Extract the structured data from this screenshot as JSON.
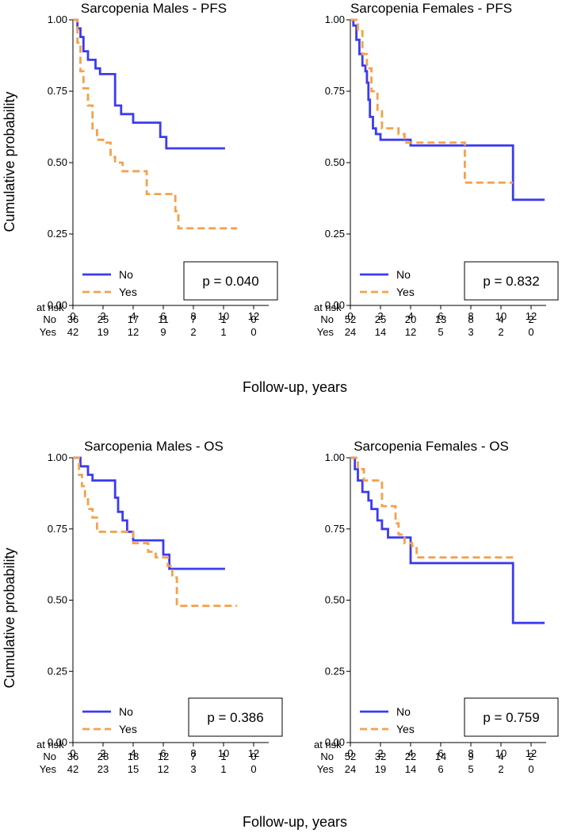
{
  "figure": {
    "ylabel": "Cumulative probability",
    "xlabel": "Follow-up, years",
    "colors": {
      "No": "#3b3bf0",
      "Yes": "#f6a04a"
    }
  },
  "chart_data": [
    {
      "type": "line",
      "title": "Sarcopenia Males - PFS",
      "xlabel": "Follow-up, years",
      "ylabel": "Cumulative probability",
      "xlim": [
        0,
        14
      ],
      "ylim": [
        0,
        1
      ],
      "xticks": [
        0,
        2,
        4,
        6,
        8,
        10,
        12
      ],
      "yticks": [
        "0.00",
        "0.25",
        "0.50",
        "0.75",
        "1.00"
      ],
      "legend": [
        "No",
        "Yes"
      ],
      "p_value": "p = 0.040",
      "risk_title": "at risk",
      "risk_table": [
        {
          "name": "No",
          "values": [
            "36",
            "25",
            "17",
            "11",
            "7",
            "1",
            "0"
          ]
        },
        {
          "name": "Yes",
          "values": [
            "42",
            "19",
            "12",
            "9",
            "2",
            "1",
            "0"
          ]
        }
      ],
      "series": [
        {
          "name": "No",
          "style": "solid",
          "points": [
            [
              0,
              1
            ],
            [
              0.3,
              0.97
            ],
            [
              0.5,
              0.94
            ],
            [
              0.7,
              0.89
            ],
            [
              1,
              0.86
            ],
            [
              1.5,
              0.83
            ],
            [
              1.8,
              0.81
            ],
            [
              2.6,
              0.81
            ],
            [
              2.8,
              0.7
            ],
            [
              3.2,
              0.67
            ],
            [
              4,
              0.64
            ],
            [
              5.6,
              0.64
            ],
            [
              5.8,
              0.59
            ],
            [
              6.2,
              0.55
            ],
            [
              10.1,
              0.55
            ]
          ]
        },
        {
          "name": "Yes",
          "style": "dashed",
          "points": [
            [
              0,
              1
            ],
            [
              0.3,
              0.92
            ],
            [
              0.5,
              0.82
            ],
            [
              0.7,
              0.76
            ],
            [
              1,
              0.7
            ],
            [
              1.3,
              0.62
            ],
            [
              1.6,
              0.58
            ],
            [
              2,
              0.57
            ],
            [
              2.5,
              0.52
            ],
            [
              2.8,
              0.5
            ],
            [
              3.3,
              0.47
            ],
            [
              4.7,
              0.47
            ],
            [
              4.9,
              0.39
            ],
            [
              6.6,
              0.39
            ],
            [
              6.8,
              0.33
            ],
            [
              7,
              0.27
            ],
            [
              10.9,
              0.27
            ]
          ]
        }
      ]
    },
    {
      "type": "line",
      "title": "Sarcopenia Females - PFS",
      "xlabel": "Follow-up, years",
      "ylabel": "Cumulative probability",
      "xlim": [
        0,
        14
      ],
      "ylim": [
        0,
        1
      ],
      "xticks": [
        0,
        2,
        4,
        6,
        8,
        10,
        12
      ],
      "yticks": [
        "0.00",
        "0.25",
        "0.50",
        "0.75",
        "1.00"
      ],
      "legend": [
        "No",
        "Yes"
      ],
      "p_value": "p = 0.832",
      "risk_title": "at risk",
      "risk_table": [
        {
          "name": "No",
          "values": [
            "52",
            "25",
            "20",
            "13",
            "8",
            "4",
            "2"
          ]
        },
        {
          "name": "Yes",
          "values": [
            "24",
            "14",
            "12",
            "5",
            "3",
            "2",
            "0"
          ]
        }
      ],
      "series": [
        {
          "name": "No",
          "style": "solid",
          "points": [
            [
              0,
              1
            ],
            [
              0.2,
              0.98
            ],
            [
              0.4,
              0.93
            ],
            [
              0.6,
              0.88
            ],
            [
              0.8,
              0.84
            ],
            [
              1,
              0.82
            ],
            [
              1.1,
              0.78
            ],
            [
              1.2,
              0.72
            ],
            [
              1.3,
              0.66
            ],
            [
              1.5,
              0.62
            ],
            [
              1.7,
              0.6
            ],
            [
              2,
              0.58
            ],
            [
              4,
              0.56
            ],
            [
              10.8,
              0.56
            ],
            [
              10.8,
              0.37
            ],
            [
              12.9,
              0.37
            ]
          ]
        },
        {
          "name": "Yes",
          "style": "dashed",
          "points": [
            [
              0,
              1
            ],
            [
              0.5,
              0.96
            ],
            [
              0.8,
              0.88
            ],
            [
              1.1,
              0.83
            ],
            [
              1.4,
              0.75
            ],
            [
              1.8,
              0.68
            ],
            [
              2.1,
              0.62
            ],
            [
              2.9,
              0.62
            ],
            [
              3.2,
              0.6
            ],
            [
              3.6,
              0.57
            ],
            [
              7.5,
              0.57
            ],
            [
              7.6,
              0.43
            ],
            [
              10.8,
              0.43
            ]
          ]
        }
      ]
    },
    {
      "type": "line",
      "title": "Sarcopenia Males - OS",
      "xlabel": "Follow-up, years",
      "ylabel": "Cumulative probability",
      "xlim": [
        0,
        14
      ],
      "ylim": [
        0,
        1
      ],
      "xticks": [
        0,
        2,
        4,
        6,
        8,
        10,
        12
      ],
      "yticks": [
        "0.00",
        "0.25",
        "0.50",
        "0.75",
        "1.00"
      ],
      "legend": [
        "No",
        "Yes"
      ],
      "p_value": "p = 0.386",
      "risk_title": "at risk",
      "risk_table": [
        {
          "name": "No",
          "values": [
            "36",
            "28",
            "18",
            "12",
            "7",
            "1",
            "0"
          ]
        },
        {
          "name": "Yes",
          "values": [
            "42",
            "23",
            "15",
            "12",
            "3",
            "1",
            "0"
          ]
        }
      ],
      "series": [
        {
          "name": "No",
          "style": "solid",
          "points": [
            [
              0,
              1
            ],
            [
              0.5,
              0.97
            ],
            [
              1,
              0.94
            ],
            [
              1.3,
              0.92
            ],
            [
              2.6,
              0.92
            ],
            [
              2.8,
              0.86
            ],
            [
              3,
              0.81
            ],
            [
              3.3,
              0.78
            ],
            [
              3.6,
              0.74
            ],
            [
              4,
              0.71
            ],
            [
              5.9,
              0.71
            ],
            [
              6,
              0.66
            ],
            [
              6.4,
              0.61
            ],
            [
              10.1,
              0.61
            ]
          ]
        },
        {
          "name": "Yes",
          "style": "dashed",
          "points": [
            [
              0,
              1
            ],
            [
              0.4,
              0.94
            ],
            [
              0.6,
              0.9
            ],
            [
              0.8,
              0.86
            ],
            [
              1,
              0.82
            ],
            [
              1.3,
              0.79
            ],
            [
              1.6,
              0.74
            ],
            [
              3.8,
              0.74
            ],
            [
              4,
              0.7
            ],
            [
              5,
              0.67
            ],
            [
              5.5,
              0.65
            ],
            [
              6.3,
              0.62
            ],
            [
              6.6,
              0.58
            ],
            [
              6.9,
              0.48
            ],
            [
              10.9,
              0.48
            ]
          ]
        }
      ]
    },
    {
      "type": "line",
      "title": "Sarcopenia Females - OS",
      "xlabel": "Follow-up, years",
      "ylabel": "Cumulative probability",
      "xlim": [
        0,
        14
      ],
      "ylim": [
        0,
        1
      ],
      "xticks": [
        0,
        2,
        4,
        6,
        8,
        10,
        12
      ],
      "yticks": [
        "0.00",
        "0.25",
        "0.50",
        "0.75",
        "1.00"
      ],
      "legend": [
        "No",
        "Yes"
      ],
      "p_value": "p = 0.759",
      "risk_title": "at risk",
      "risk_table": [
        {
          "name": "No",
          "values": [
            "52",
            "32",
            "22",
            "14",
            "9",
            "4",
            "2"
          ]
        },
        {
          "name": "Yes",
          "values": [
            "24",
            "19",
            "14",
            "6",
            "5",
            "2",
            "0"
          ]
        }
      ],
      "series": [
        {
          "name": "No",
          "style": "solid",
          "points": [
            [
              0,
              1
            ],
            [
              0.3,
              0.96
            ],
            [
              0.5,
              0.92
            ],
            [
              0.8,
              0.88
            ],
            [
              1.2,
              0.85
            ],
            [
              1.4,
              0.82
            ],
            [
              1.8,
              0.78
            ],
            [
              2.1,
              0.75
            ],
            [
              2.5,
              0.72
            ],
            [
              3.8,
              0.72
            ],
            [
              4,
              0.63
            ],
            [
              10.8,
              0.63
            ],
            [
              10.8,
              0.42
            ],
            [
              12.9,
              0.42
            ]
          ]
        },
        {
          "name": "Yes",
          "style": "dashed",
          "points": [
            [
              0,
              1
            ],
            [
              0.5,
              0.96
            ],
            [
              0.9,
              0.92
            ],
            [
              2,
              0.92
            ],
            [
              2.1,
              0.83
            ],
            [
              2.9,
              0.83
            ],
            [
              3,
              0.77
            ],
            [
              3.2,
              0.73
            ],
            [
              3.6,
              0.7
            ],
            [
              4.1,
              0.69
            ],
            [
              4.4,
              0.65
            ],
            [
              10.8,
              0.65
            ]
          ]
        }
      ]
    }
  ]
}
